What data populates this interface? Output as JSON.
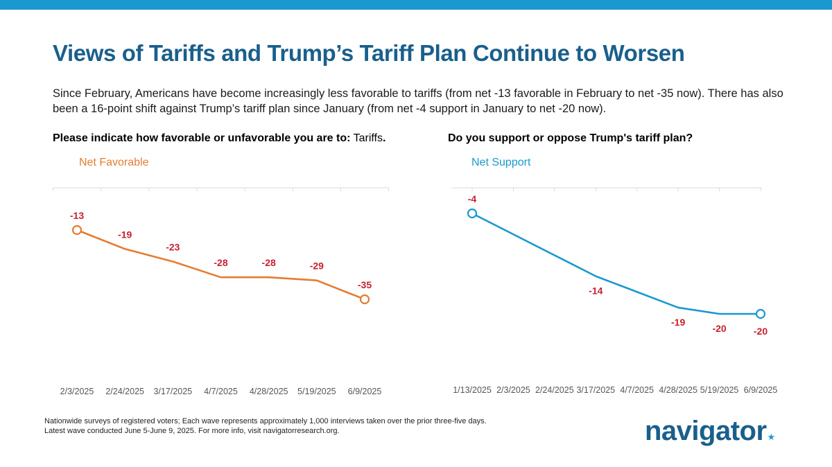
{
  "colors": {
    "bar": "#1a98d0",
    "title": "#1a5f8c",
    "orange": "#e57c31",
    "blue": "#1a98d0",
    "label_red": "#c8202f",
    "grid": "#d9d9d9",
    "tick": "#555555"
  },
  "title": "Views of Tariffs and Trump’s Tariff Plan Continue to Worsen",
  "subtitle": "Since February, Americans have become increasingly less favorable to tariffs (from net -13 favorable in February to net -35 now). There has also been a 16-point shift against Trump’s tariff plan since January (from net -4 support in January to net -20 now).",
  "left_question_bold": "Please indicate how favorable or unfavorable you are to:",
  "left_question_plain": " Tariffs",
  "left_question_end": ".",
  "right_question": "Do you support or oppose Trump's tariff plan?",
  "footnote_line1": "Nationwide surveys of registered voters; Each wave represents approximately 1,000 interviews taken over the prior three-five days.",
  "footnote_line2": "Latest wave conducted June 5-June 9, 2025. For more info, visit navigatorresearch.org.",
  "logo_text": "navigator",
  "logo_mark": "★",
  "chart_data": [
    {
      "type": "line",
      "title": "Please indicate how favorable or unfavorable you are to: Tariffs.",
      "series": [
        {
          "name": "Net Favorable",
          "values": [
            -13,
            -19,
            -23,
            -28,
            -28,
            -29,
            -35
          ]
        }
      ],
      "categories": [
        "2/3/2025",
        "2/24/2025",
        "3/17/2025",
        "4/7/2025",
        "4/28/2025",
        "5/19/2025",
        "6/9/2025"
      ],
      "value_labels": [
        "-13",
        "-19",
        "-23",
        "-28",
        "-28",
        "-29",
        "-35"
      ],
      "ylim": [
        -50,
        0
      ]
    },
    {
      "type": "line",
      "title": "Do you support or oppose Trump's tariff plan?",
      "series": [
        {
          "name": "Net Support",
          "values": [
            -4,
            null,
            null,
            -14,
            null,
            -19,
            -20,
            -20
          ]
        }
      ],
      "categories": [
        "1/13/2025",
        "2/3/2025",
        "2/24/2025",
        "3/17/2025",
        "4/7/2025",
        "4/28/2025",
        "5/19/2025",
        "6/9/2025"
      ],
      "value_labels": [
        "-4",
        "",
        "",
        "-14",
        "",
        "-19",
        "-20",
        "-20"
      ],
      "ylim": [
        -30,
        0
      ]
    }
  ]
}
